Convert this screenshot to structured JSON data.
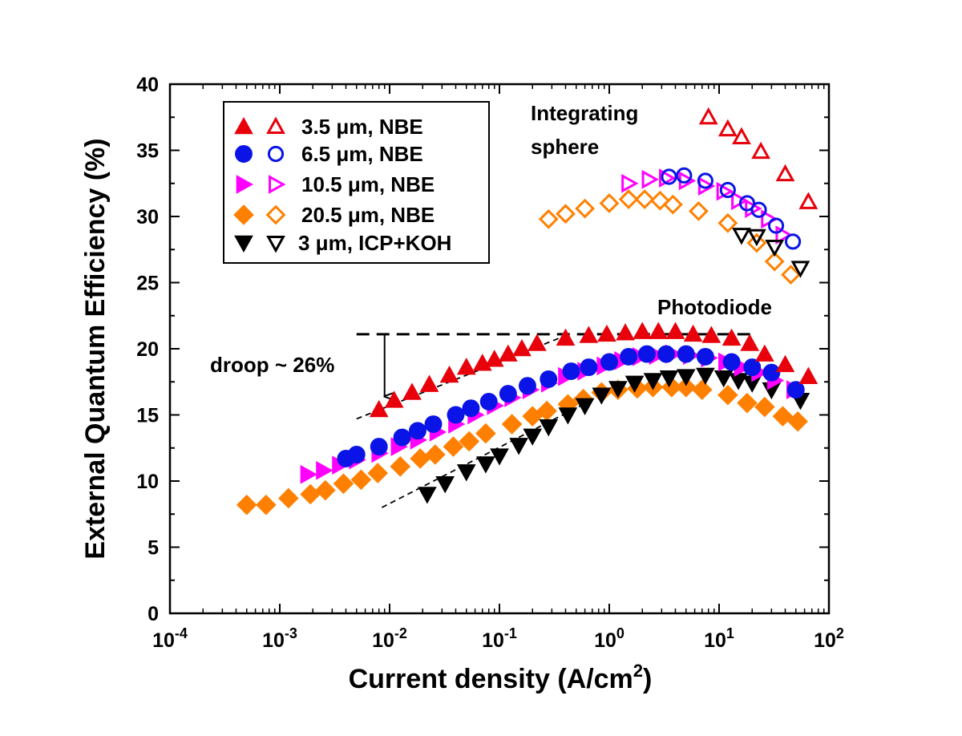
{
  "chart_data": {
    "type": "scatter",
    "title": "",
    "xlabel": "Current density (A/cm2)",
    "xlabel_base": "Current density (A/cm",
    "xlabel_sup": "2",
    "xlabel_end": ")",
    "ylabel": "External Quantum Efficiency (%)",
    "xscale": "log",
    "xlim": [
      0.0001,
      100
    ],
    "ylim": [
      0,
      40
    ],
    "xticks": [
      {
        "base": "10",
        "exp": "-4"
      },
      {
        "base": "10",
        "exp": "-3"
      },
      {
        "base": "10",
        "exp": "-2"
      },
      {
        "base": "10",
        "exp": "-1"
      },
      {
        "base": "10",
        "exp": "0"
      },
      {
        "base": "10",
        "exp": "1"
      },
      {
        "base": "10",
        "exp": "2"
      }
    ],
    "yticks": [
      "0",
      "5",
      "10",
      "15",
      "20",
      "25",
      "30",
      "35",
      "40"
    ],
    "legend_position": "top-left",
    "legend": [
      {
        "label": "3.5 μm, NBE",
        "color": "#e8000b",
        "marker": "triangle-up"
      },
      {
        "label": "6.5 μm, NBE",
        "color": "#0a14e6",
        "marker": "circle"
      },
      {
        "label": "10.5 μm, NBE",
        "color": "#ff00ff",
        "marker": "triangle-right"
      },
      {
        "label": "20.5 μm, NBE",
        "color": "#ff8000",
        "marker": "diamond"
      },
      {
        "label": "3 μm, ICP+KOH",
        "color": "#000000",
        "marker": "triangle-down"
      }
    ],
    "annotations": {
      "integrating_line1": "Integrating",
      "integrating_line2": "sphere",
      "photodiode": "Photodiode",
      "droop": "droop ~ 26%"
    },
    "series": [
      {
        "name": "3.5 μm, NBE",
        "method": "Photodiode",
        "filled": true,
        "marker": "triangle-up",
        "color": "#e8000b",
        "x": [
          0.008,
          0.011,
          0.016,
          0.023,
          0.035,
          0.05,
          0.07,
          0.09,
          0.12,
          0.16,
          0.22,
          0.4,
          0.65,
          0.95,
          1.4,
          2.0,
          2.8,
          4.0,
          5.8,
          8.5,
          13,
          19,
          26,
          40,
          65
        ],
        "y": [
          15.4,
          16.1,
          16.7,
          17.3,
          18.0,
          18.6,
          18.9,
          19.2,
          19.6,
          20.0,
          20.4,
          20.8,
          21.0,
          21.1,
          21.2,
          21.3,
          21.3,
          21.3,
          21.1,
          21.0,
          20.8,
          20.4,
          19.6,
          18.8,
          17.9
        ]
      },
      {
        "name": "6.5 μm, NBE",
        "method": "Photodiode",
        "filled": true,
        "marker": "circle",
        "color": "#0a14e6",
        "x": [
          0.004,
          0.005,
          0.008,
          0.013,
          0.018,
          0.025,
          0.04,
          0.055,
          0.08,
          0.12,
          0.18,
          0.28,
          0.45,
          0.65,
          1.0,
          1.5,
          2.2,
          3.3,
          5.0,
          7.5,
          13,
          20,
          30,
          50
        ],
        "y": [
          11.7,
          12.0,
          12.6,
          13.3,
          13.8,
          14.3,
          15.0,
          15.5,
          16.0,
          16.6,
          17.2,
          17.7,
          18.3,
          18.6,
          19.0,
          19.4,
          19.6,
          19.6,
          19.6,
          19.4,
          19.0,
          18.6,
          18.2,
          16.9
        ]
      },
      {
        "name": "10.5 μm, NBE",
        "method": "Photodiode",
        "filled": true,
        "marker": "triangle-right",
        "color": "#ff00ff",
        "x": [
          0.0018,
          0.0025,
          0.0035,
          0.005,
          0.008,
          0.012,
          0.018,
          0.027,
          0.04,
          0.06,
          0.09,
          0.13,
          0.19,
          0.28,
          0.4,
          0.6,
          0.9,
          1.3,
          1.9,
          2.7,
          3.8,
          5.5,
          8,
          11.5,
          16,
          23,
          32,
          48
        ],
        "y": [
          10.5,
          10.8,
          11.2,
          11.6,
          12.1,
          12.6,
          13.1,
          13.7,
          14.3,
          15.0,
          15.7,
          16.3,
          16.9,
          17.4,
          17.9,
          18.3,
          18.7,
          19.1,
          19.4,
          19.5,
          19.6,
          19.5,
          19.3,
          19.0,
          18.6,
          18.2,
          17.6,
          16.9
        ]
      },
      {
        "name": "20.5 μm, NBE",
        "method": "Photodiode",
        "filled": true,
        "marker": "diamond",
        "color": "#ff8000",
        "x": [
          0.0005,
          0.00075,
          0.0012,
          0.0019,
          0.0026,
          0.0038,
          0.0055,
          0.0078,
          0.0125,
          0.019,
          0.026,
          0.038,
          0.053,
          0.075,
          0.13,
          0.2,
          0.27,
          0.42,
          0.58,
          0.85,
          1.2,
          1.8,
          2.5,
          3.7,
          5.0,
          7.0,
          12,
          18,
          26,
          38,
          52
        ],
        "y": [
          8.2,
          8.2,
          8.7,
          9.0,
          9.3,
          9.8,
          10.1,
          10.6,
          11.1,
          11.7,
          12.0,
          12.6,
          13.0,
          13.6,
          14.3,
          14.9,
          15.3,
          15.8,
          16.2,
          16.7,
          16.9,
          17.0,
          17.1,
          17.1,
          17.1,
          16.9,
          16.5,
          15.9,
          15.6,
          14.9,
          14.5
        ]
      },
      {
        "name": "3 μm, ICP+KOH",
        "method": "Photodiode",
        "filled": true,
        "marker": "triangle-down",
        "color": "#000000",
        "x": [
          0.022,
          0.032,
          0.05,
          0.075,
          0.1,
          0.15,
          0.2,
          0.28,
          0.42,
          0.6,
          0.85,
          1.2,
          1.7,
          2.5,
          3.5,
          5.0,
          7.5,
          11,
          15,
          20,
          30,
          55
        ],
        "y": [
          9.0,
          9.8,
          10.7,
          11.3,
          11.9,
          12.7,
          13.4,
          14.1,
          15.0,
          15.7,
          16.5,
          17.0,
          17.4,
          17.6,
          17.8,
          17.9,
          18.0,
          17.8,
          17.6,
          17.4,
          16.9,
          16.1
        ]
      },
      {
        "name": "3.5 μm, NBE",
        "method": "Integrating sphere",
        "filled": false,
        "marker": "triangle-up",
        "color": "#e8000b",
        "x": [
          8,
          12,
          16,
          24,
          40,
          65
        ],
        "y": [
          37.5,
          36.6,
          36.0,
          34.9,
          33.2,
          31.1
        ]
      },
      {
        "name": "6.5 μm, NBE",
        "method": "Integrating sphere",
        "filled": false,
        "marker": "circle",
        "color": "#0a14e6",
        "x": [
          3.5,
          4.8,
          7.5,
          12,
          18,
          23,
          33,
          47
        ],
        "y": [
          33.0,
          33.1,
          32.7,
          32.0,
          31.0,
          30.5,
          29.3,
          28.1
        ]
      },
      {
        "name": "10.5 μm, NBE",
        "method": "Integrating sphere",
        "filled": false,
        "marker": "triangle-right",
        "color": "#ff00ff",
        "x": [
          1.5,
          2.3,
          3.3,
          5,
          7.5,
          11,
          15,
          20,
          28,
          38
        ],
        "y": [
          32.5,
          32.8,
          32.9,
          32.7,
          32.3,
          31.9,
          31.2,
          30.6,
          29.8,
          28.6
        ]
      },
      {
        "name": "20.5 μm, NBE",
        "method": "Integrating sphere",
        "filled": false,
        "marker": "diamond",
        "color": "#ff8000",
        "x": [
          0.28,
          0.4,
          0.6,
          1.0,
          1.5,
          2.1,
          2.9,
          3.8,
          6.5,
          12,
          22,
          32,
          45
        ],
        "y": [
          29.8,
          30.2,
          30.6,
          31.0,
          31.3,
          31.3,
          31.2,
          30.9,
          30.4,
          29.5,
          28.0,
          26.6,
          25.6
        ]
      },
      {
        "name": "3 μm, ICP+KOH",
        "method": "Integrating sphere",
        "filled": false,
        "marker": "triangle-down",
        "color": "#000000",
        "x": [
          16,
          22,
          32,
          55
        ],
        "y": [
          28.6,
          28.5,
          27.7,
          26.1
        ]
      }
    ],
    "guide_lines": [
      {
        "style": "dashed",
        "from": [
          0.005,
          14.7
        ],
        "to": [
          0.35,
          20.8
        ]
      },
      {
        "style": "dashed",
        "from": [
          0.0085,
          8.0
        ],
        "to": [
          0.55,
          15.7
        ]
      },
      {
        "style": "bold-dashed",
        "from": [
          0.005,
          21.1
        ],
        "to": [
          22,
          21.1
        ]
      }
    ],
    "droop_arrow": {
      "x": 0.009,
      "from_y": 21.1,
      "to_y": 16.4
    }
  }
}
